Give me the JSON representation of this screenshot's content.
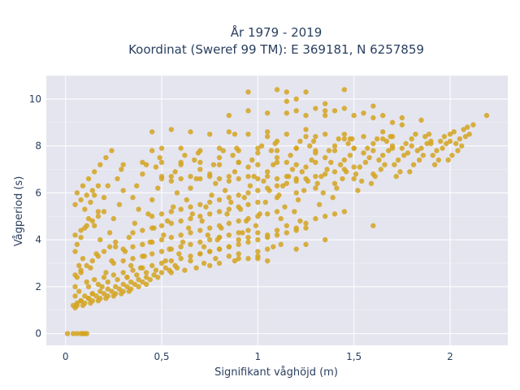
{
  "chart_data": {
    "type": "scatter",
    "title_line1": "År 1979 - 2019",
    "title_line2": "Koordinat (Sweref 99 TM): E 369181, N 6257859",
    "xlabel": "Signifikant våghöjd (m)",
    "ylabel": "Vågperiod (s)",
    "xlim": [
      -0.1,
      2.3
    ],
    "ylim": [
      -0.5,
      11
    ],
    "x_ticks": [
      {
        "value": 0,
        "label": "0"
      },
      {
        "value": 0.5,
        "label": "0,5"
      },
      {
        "value": 1,
        "label": "1"
      },
      {
        "value": 1.5,
        "label": "1,5"
      },
      {
        "value": 2,
        "label": "2"
      }
    ],
    "y_ticks": [
      {
        "value": 0,
        "label": "0"
      },
      {
        "value": 2,
        "label": "2"
      },
      {
        "value": 4,
        "label": "4"
      },
      {
        "value": 6,
        "label": "6"
      },
      {
        "value": 8,
        "label": "8"
      },
      {
        "value": 10,
        "label": "10"
      }
    ],
    "grid": true,
    "plot_background": "#e5e5f0",
    "marker_color": "#d4a520",
    "series": [
      {
        "x": [
          0.01,
          0.04,
          0.06,
          0.08,
          0.09,
          0.1,
          0.11,
          0.04,
          0.06,
          0.08,
          0.05,
          0.07,
          0.05,
          0.06,
          0.08,
          0.07,
          0.09,
          0.05,
          0.06,
          0.08,
          0.1,
          0.12,
          0.1,
          0.13,
          0.15,
          0.12,
          0.14,
          0.11,
          0.13,
          0.16,
          0.18,
          0.15,
          0.17,
          0.2,
          0.22,
          0.19,
          0.21,
          0.24,
          0.26,
          0.23,
          0.25,
          0.28,
          0.3,
          0.27,
          0.29,
          0.32,
          0.34,
          0.31,
          0.33,
          0.36,
          0.38,
          0.35,
          0.37,
          0.4,
          0.42,
          0.39,
          0.41,
          0.44,
          0.46,
          0.43,
          0.45,
          0.48,
          0.5,
          0.47,
          0.49,
          0.52,
          0.54,
          0.51,
          0.53,
          0.56,
          0.58,
          0.55,
          0.57,
          0.6,
          0.62,
          0.59,
          0.61,
          0.64,
          0.66,
          0.63,
          0.65,
          0.68,
          0.7,
          0.67,
          0.69,
          0.72,
          0.74,
          0.71,
          0.73,
          0.76,
          0.78,
          0.75,
          0.77,
          0.8,
          0.82,
          0.79,
          0.81,
          0.84,
          0.86,
          0.83,
          0.85,
          0.88,
          0.9,
          0.87,
          0.89,
          0.92,
          0.94,
          0.91,
          0.93,
          0.96,
          0.98,
          0.95,
          0.97,
          1.0,
          1.02,
          0.99,
          1.01,
          1.04,
          1.06,
          1.03,
          1.05,
          1.08,
          1.1,
          1.07,
          1.09,
          1.12,
          1.14,
          1.11,
          1.13,
          1.16,
          1.18,
          1.15,
          1.17,
          1.2,
          1.22,
          1.19,
          1.21,
          1.24,
          1.26,
          1.23,
          1.25,
          1.28,
          1.3,
          1.27,
          1.29,
          1.32,
          1.34,
          1.31,
          1.33,
          1.36,
          1.38,
          1.35,
          1.37,
          1.4,
          1.42,
          1.39,
          1.41,
          1.44,
          1.46,
          1.43,
          1.45,
          1.48,
          1.5,
          1.47,
          1.49,
          1.52,
          1.54,
          1.51,
          1.53,
          1.56,
          1.58,
          1.55,
          1.57,
          1.6,
          1.62,
          1.59,
          1.61,
          1.64,
          1.66,
          1.63,
          1.65,
          1.68,
          1.7,
          1.67,
          1.69,
          1.72,
          1.74,
          1.71,
          1.73,
          1.76,
          1.78,
          1.75,
          1.77,
          1.8,
          1.82,
          1.79,
          1.81,
          1.84,
          1.86,
          1.83,
          1.85,
          1.88,
          1.9,
          1.87,
          1.89,
          1.92,
          1.94,
          1.91,
          1.93,
          1.96,
          1.98,
          1.95,
          1.97,
          2.0,
          2.02,
          1.99,
          2.01,
          2.04,
          2.06,
          2.03,
          2.05,
          2.08,
          2.1,
          2.07,
          2.09,
          2.12,
          2.19,
          0.45,
          0.55,
          0.65,
          0.75,
          0.85,
          0.95,
          1.05,
          1.15,
          1.25,
          1.35,
          1.45,
          1.55,
          1.65,
          0.45,
          0.5,
          0.6,
          0.7,
          0.8,
          0.9,
          1.0,
          1.1,
          1.2,
          1.3,
          1.4,
          1.5,
          1.6,
          1.7,
          1.8,
          1.9,
          2.0,
          0.3,
          0.4,
          0.5,
          0.6,
          0.7,
          0.8,
          0.9,
          1.0,
          1.1,
          1.2,
          1.3,
          0.5,
          0.55,
          0.6,
          0.65,
          0.7,
          0.75,
          0.8,
          0.85,
          0.9,
          0.95,
          1.0,
          1.05,
          1.1,
          1.15,
          1.2,
          0.85,
          0.95,
          1.05,
          1.15,
          1.25,
          1.35,
          1.45,
          1.55,
          1.65,
          1.75,
          1.85,
          0.45,
          0.5,
          0.55,
          0.6,
          0.65,
          0.7,
          0.75,
          0.8,
          0.85,
          0.9,
          0.95,
          1.0,
          1.05,
          1.1,
          1.15,
          1.2,
          1.25,
          1.3,
          1.35,
          1.4,
          1.45,
          1.5,
          0.35,
          0.4,
          0.45,
          0.5,
          0.55,
          0.6,
          0.65,
          0.7,
          0.75,
          0.8,
          0.85,
          0.9,
          0.95,
          1.0,
          1.1,
          1.2,
          1.3,
          1.4,
          1.5,
          1.6,
          0.3,
          0.35,
          0.4,
          0.45,
          0.5,
          0.55,
          0.6,
          0.65,
          0.7,
          0.75,
          0.8,
          0.85,
          0.9,
          0.95,
          1.0,
          1.05,
          1.1,
          0.25,
          0.3,
          0.35,
          0.4,
          0.45,
          0.5,
          0.55,
          0.6,
          0.65,
          0.7,
          0.75,
          0.8,
          0.85,
          0.9,
          0.95,
          0.15,
          0.2,
          0.25,
          0.3,
          0.35,
          0.4,
          0.45,
          0.5,
          0.55,
          0.6,
          0.65,
          0.7,
          0.75,
          0.8,
          0.85,
          0.12,
          0.17,
          0.22,
          0.27,
          0.32,
          0.37,
          0.42,
          0.47,
          0.52,
          0.57,
          0.1,
          0.14,
          0.18,
          0.22,
          0.26,
          0.3,
          0.34,
          0.38,
          0.42,
          0.46,
          0.5,
          0.54,
          0.58,
          0.08,
          0.12,
          0.16,
          0.2,
          0.24,
          0.28,
          0.32,
          0.36,
          0.4,
          0.44,
          0.48,
          0.06,
          0.1,
          0.14,
          0.18,
          0.22,
          0.26,
          0.3,
          0.34,
          0.38,
          0.42,
          0.05,
          0.09,
          0.13,
          0.17,
          0.21,
          0.25,
          0.29,
          0.33,
          0.05,
          0.08,
          0.11,
          0.14,
          0.17,
          0.2,
          0.23,
          0.26,
          0.05,
          0.08,
          0.11,
          0.14,
          0.17,
          0.2,
          0.05,
          0.08,
          0.11,
          0.14,
          0.17,
          0.06,
          0.09,
          0.12,
          0.15,
          0.18,
          0.21,
          0.24,
          0.95,
          1.1,
          1.15,
          1.2,
          1.25,
          1.35,
          1.45,
          1.6,
          1.15,
          1.2,
          1.3,
          1.35,
          1.4,
          1.5,
          1.6,
          1.7,
          1.75,
          0.88,
          1.05,
          1.1,
          1.25,
          1.3,
          1.45,
          1.48,
          1.65,
          1.7,
          0.8,
          0.9,
          0.95,
          1.0,
          1.05,
          1.1,
          1.15,
          1.2,
          1.22,
          1.25,
          1.3,
          1.35,
          1.4,
          1.45,
          0.7,
          0.75,
          0.8,
          0.85,
          0.9,
          0.95,
          1.0,
          1.05,
          1.1,
          1.15,
          1.2,
          1.25,
          0.65,
          0.72,
          0.78,
          0.85,
          0.9,
          1.0,
          1.05,
          1.08,
          1.12,
          0.55,
          0.62,
          0.68,
          0.75,
          0.8,
          0.88,
          0.95,
          1.0,
          0.9,
          1.0,
          1.05,
          1.2,
          1.25,
          1.35,
          1.6
        ],
        "y": [
          0.0,
          0.0,
          0.0,
          0.0,
          0.0,
          0.0,
          0.0,
          1.2,
          1.3,
          1.4,
          1.6,
          1.8,
          2.0,
          2.4,
          2.6,
          2.9,
          3.2,
          3.5,
          3.8,
          4.1,
          4.5,
          4.9,
          5.3,
          5.6,
          5.9,
          1.5,
          1.7,
          2.2,
          2.8,
          3.4,
          4.0,
          4.6,
          5.2,
          5.8,
          6.3,
          2.0,
          2.6,
          3.1,
          3.7,
          4.3,
          4.9,
          5.5,
          6.1,
          6.6,
          7.0,
          2.4,
          2.9,
          3.5,
          4.1,
          4.7,
          5.3,
          5.8,
          6.3,
          6.8,
          7.2,
          2.8,
          3.3,
          3.9,
          4.5,
          5.1,
          5.7,
          6.2,
          6.7,
          7.1,
          7.5,
          3.1,
          3.6,
          4.2,
          4.8,
          5.4,
          6.0,
          6.5,
          6.9,
          7.3,
          7.6,
          3.4,
          3.9,
          4.5,
          5.1,
          5.7,
          6.2,
          6.6,
          7.0,
          7.4,
          7.7,
          3.7,
          4.2,
          4.8,
          5.4,
          5.9,
          6.4,
          6.8,
          7.2,
          7.5,
          7.8,
          4.0,
          4.5,
          5.1,
          5.6,
          6.1,
          6.5,
          6.9,
          7.3,
          7.6,
          7.9,
          4.3,
          4.8,
          5.3,
          5.8,
          6.3,
          6.7,
          7.1,
          7.4,
          7.7,
          8.0,
          4.6,
          5.1,
          5.6,
          6.1,
          6.5,
          6.9,
          7.2,
          7.5,
          7.8,
          8.1,
          4.9,
          5.4,
          5.9,
          6.3,
          6.7,
          7.0,
          7.3,
          7.6,
          7.9,
          8.2,
          5.2,
          5.7,
          6.1,
          6.5,
          6.9,
          7.1,
          7.4,
          7.7,
          8.0,
          8.2,
          5.5,
          6.0,
          6.4,
          6.7,
          7.0,
          7.3,
          7.5,
          7.8,
          8.0,
          8.3,
          5.8,
          6.2,
          6.6,
          6.9,
          7.2,
          7.4,
          7.6,
          7.9,
          8.1,
          8.3,
          6.1,
          6.5,
          6.8,
          7.1,
          7.3,
          7.5,
          7.7,
          7.9,
          8.1,
          8.3,
          6.4,
          6.7,
          7.0,
          7.2,
          7.4,
          7.6,
          7.8,
          8.0,
          8.2,
          8.4,
          6.7,
          6.9,
          7.2,
          7.4,
          7.6,
          7.7,
          7.9,
          8.1,
          8.3,
          8.5,
          6.9,
          7.2,
          7.4,
          7.6,
          7.8,
          7.9,
          8.1,
          8.2,
          8.4,
          8.5,
          7.2,
          7.4,
          7.6,
          7.8,
          7.9,
          8.1,
          8.2,
          8.4,
          8.5,
          8.6,
          7.4,
          7.6,
          7.8,
          8.0,
          8.1,
          8.3,
          8.4,
          8.5,
          8.7,
          8.8,
          8.9,
          9.3,
          8.6,
          8.7,
          8.6,
          8.5,
          8.6,
          8.5,
          8.4,
          8.5,
          8.4,
          8.5,
          8.3,
          8.4,
          8.3,
          7.8,
          7.9,
          7.9,
          7.8,
          7.9,
          7.8,
          7.9,
          7.8,
          7.9,
          7.8,
          7.8,
          7.9,
          7.8,
          7.9,
          8.0,
          8.1,
          8.2,
          7.2,
          7.3,
          7.3,
          7.2,
          7.3,
          7.2,
          7.3,
          7.2,
          7.3,
          7.2,
          7.3,
          6.6,
          6.7,
          6.6,
          6.7,
          6.6,
          6.7,
          6.6,
          6.7,
          6.6,
          6.7,
          6.6,
          6.7,
          6.6,
          6.7,
          6.6,
          9.3,
          9.5,
          9.4,
          9.4,
          9.3,
          9.5,
          9.6,
          9.4,
          9.3,
          9.2,
          9.1,
          5.0,
          5.1,
          5.2,
          5.3,
          5.4,
          5.5,
          5.6,
          5.7,
          5.8,
          5.9,
          6.0,
          6.1,
          6.2,
          6.3,
          6.4,
          6.5,
          6.6,
          6.7,
          6.8,
          6.9,
          7.0,
          7.1,
          4.3,
          4.4,
          4.5,
          4.6,
          4.7,
          4.8,
          4.9,
          5.0,
          5.1,
          5.2,
          5.3,
          5.4,
          5.5,
          5.6,
          5.8,
          6.0,
          6.2,
          6.4,
          6.6,
          6.8,
          3.6,
          3.7,
          3.8,
          3.9,
          4.0,
          4.1,
          4.2,
          4.3,
          4.4,
          4.5,
          4.6,
          4.7,
          4.8,
          4.9,
          5.0,
          5.1,
          5.2,
          3.0,
          3.1,
          3.2,
          3.3,
          3.4,
          3.5,
          3.6,
          3.7,
          3.8,
          3.9,
          4.0,
          4.1,
          4.2,
          4.3,
          4.4,
          2.3,
          2.4,
          2.5,
          2.6,
          2.7,
          2.8,
          2.9,
          3.0,
          3.1,
          3.2,
          3.3,
          3.4,
          3.5,
          3.6,
          3.7,
          2.0,
          2.1,
          2.2,
          2.3,
          2.4,
          2.5,
          2.6,
          2.7,
          2.8,
          2.9,
          1.6,
          1.7,
          1.8,
          1.9,
          2.0,
          2.1,
          2.2,
          2.3,
          2.4,
          2.5,
          2.6,
          2.7,
          2.8,
          1.4,
          1.5,
          1.6,
          1.7,
          1.8,
          1.9,
          2.0,
          2.1,
          2.2,
          2.3,
          2.4,
          1.2,
          1.3,
          1.4,
          1.5,
          1.6,
          1.7,
          1.8,
          1.9,
          2.0,
          2.1,
          1.1,
          1.2,
          1.3,
          1.4,
          1.5,
          1.6,
          1.7,
          1.8,
          2.5,
          2.7,
          2.9,
          3.1,
          3.3,
          3.5,
          3.7,
          3.9,
          4.2,
          4.4,
          4.6,
          4.8,
          5.0,
          5.2,
          5.5,
          5.7,
          5.9,
          6.1,
          6.3,
          6.0,
          6.3,
          6.6,
          6.9,
          7.2,
          7.5,
          7.8,
          10.3,
          10.4,
          10.3,
          10.0,
          10.3,
          9.8,
          10.4,
          9.7,
          9.9,
          9.5,
          9.6,
          9.3,
          9.5,
          9.3,
          9.2,
          9.0,
          8.9,
          8.5,
          8.6,
          8.2,
          8.7,
          8.4,
          8.5,
          8.3,
          8.6,
          8.4,
          4.1,
          4.0,
          4.1,
          4.3,
          4.2,
          4.4,
          4.6,
          4.5,
          4.8,
          4.7,
          4.9,
          5.0,
          5.1,
          5.2,
          3.4,
          3.5,
          3.6,
          3.7,
          3.8,
          3.9,
          4.0,
          4.1,
          4.2,
          4.3,
          4.4,
          4.5,
          3.1,
          3.0,
          3.2,
          3.3,
          3.4,
          3.5,
          3.6,
          3.7,
          3.8,
          2.6,
          2.7,
          2.8,
          2.9,
          3.0,
          3.1,
          3.2,
          3.3,
          3.2,
          3.2,
          3.1,
          3.6,
          3.8,
          4.0,
          4.6
        ]
      }
    ]
  }
}
